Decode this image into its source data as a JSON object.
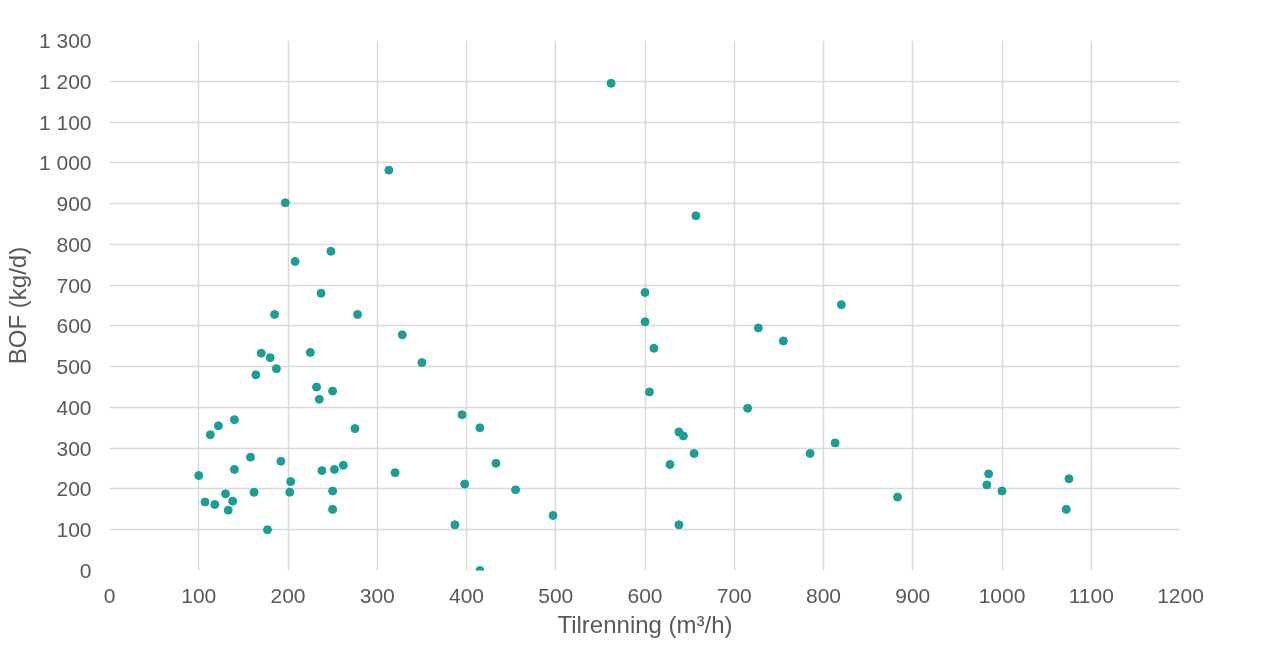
{
  "chart_data": {
    "type": "scatter",
    "xlabel": "Tilrenning (m³/h)",
    "ylabel": "BOF (kg/d)",
    "xlim": [
      0,
      1200
    ],
    "ylim": [
      0,
      1300
    ],
    "xticks": [
      0,
      100,
      200,
      300,
      400,
      500,
      600,
      700,
      800,
      900,
      1000,
      1100,
      1200
    ],
    "yticks": [
      {
        "value": 0,
        "label": "0"
      },
      {
        "value": 100,
        "label": "100"
      },
      {
        "value": 200,
        "label": "200"
      },
      {
        "value": 300,
        "label": "300"
      },
      {
        "value": 400,
        "label": "400"
      },
      {
        "value": 500,
        "label": "500"
      },
      {
        "value": 600,
        "label": "600"
      },
      {
        "value": 700,
        "label": "700"
      },
      {
        "value": 800,
        "label": "800"
      },
      {
        "value": 900,
        "label": "900"
      },
      {
        "value": 1000,
        "label": "1 000"
      },
      {
        "value": 1100,
        "label": "1 100"
      },
      {
        "value": 1200,
        "label": "1 200"
      },
      {
        "value": 1300,
        "label": "1 300"
      }
    ],
    "grid": true,
    "marker": "circle",
    "series": [
      {
        "color": "#1a9e96",
        "x": [
          100,
          107,
          113,
          118,
          122,
          130,
          133,
          138,
          140,
          140,
          158,
          162,
          164,
          170,
          177,
          180,
          185,
          187,
          192,
          197,
          202,
          203,
          208,
          225,
          232,
          235,
          237,
          238,
          248,
          250,
          250,
          250,
          252,
          262,
          275,
          278,
          313,
          320,
          328,
          350,
          387,
          395,
          398,
          415,
          415,
          433,
          455,
          497,
          562,
          600,
          600,
          605,
          610,
          628,
          638,
          638,
          643,
          655,
          657,
          715,
          727,
          755,
          785,
          813,
          820,
          883,
          983,
          985,
          1000,
          1072,
          1075
        ],
        "values": [
          233,
          168,
          333,
          162,
          355,
          188,
          148,
          170,
          248,
          370,
          278,
          192,
          480,
          533,
          100,
          522,
          628,
          495,
          268,
          902,
          192,
          218,
          758,
          535,
          450,
          420,
          680,
          245,
          783,
          440,
          195,
          150,
          248,
          258,
          348,
          628,
          982,
          240,
          578,
          510,
          112,
          382,
          212,
          350,
          0,
          263,
          198,
          135,
          1195,
          682,
          610,
          438,
          545,
          260,
          340,
          112,
          330,
          287,
          870,
          398,
          595,
          563,
          287,
          313,
          652,
          180,
          210,
          237,
          195,
          150,
          225
        ]
      }
    ]
  }
}
